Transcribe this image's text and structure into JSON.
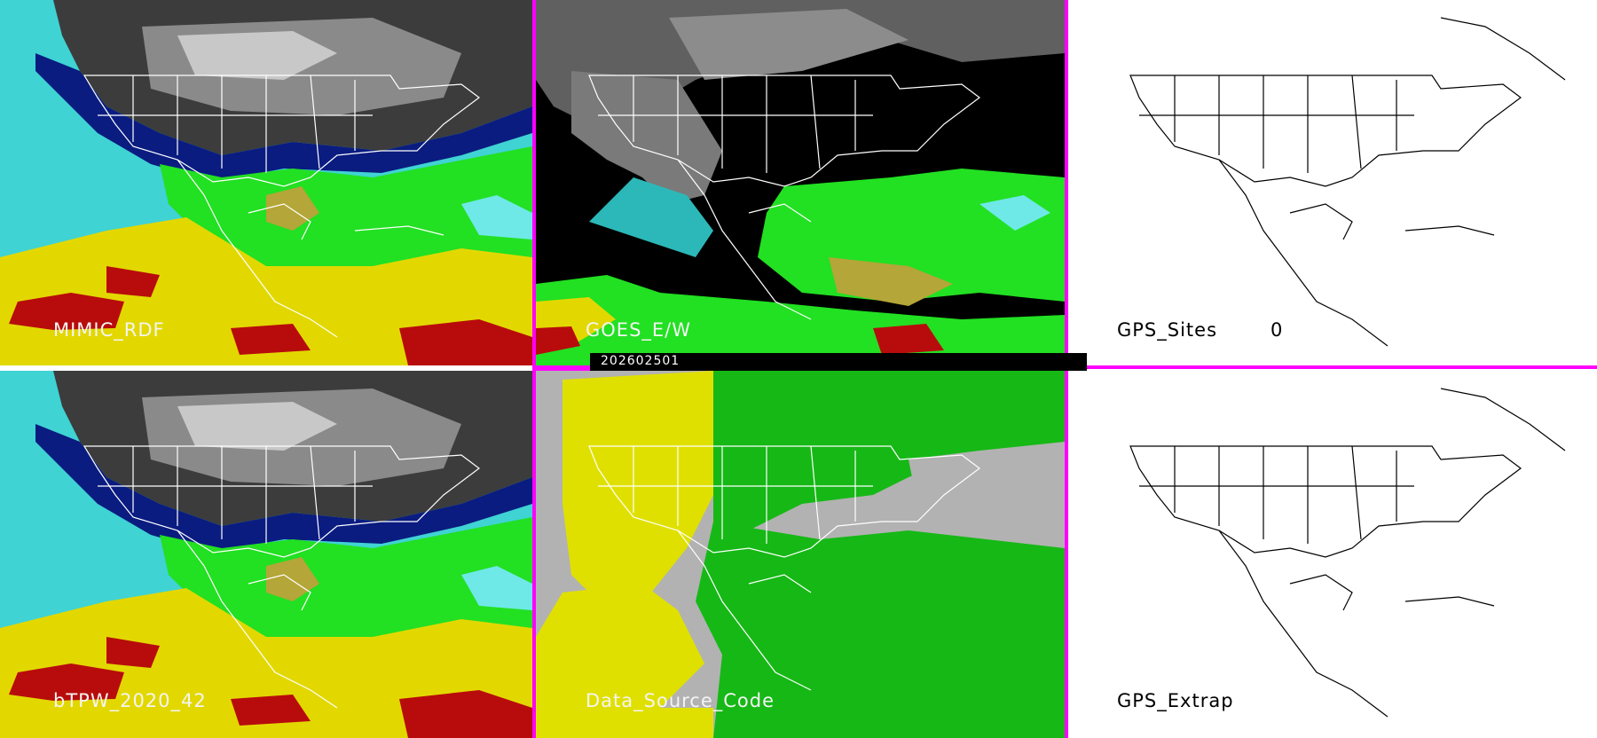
{
  "colors": {
    "divider": "#ff00ff",
    "ocean_cyan": "#3fd3d3",
    "green": "#22e022",
    "yellow": "#e2d800",
    "red": "#b80c0c",
    "gray_dark": "#3a3a3a",
    "gray_light": "#b8b8b8",
    "navy": "#0a1c80",
    "source_yellow": "#e0e000",
    "source_green": "#16b816",
    "source_gray": "#b2b2b2"
  },
  "panels": {
    "mimic": {
      "label": "MIMIC_RDF"
    },
    "goes": {
      "label": "GOES_E/W"
    },
    "gps_sites": {
      "label": "GPS_Sites",
      "count": "0"
    },
    "bltpw": {
      "label": "bTPW_2020_42"
    },
    "source": {
      "label": "Data_Source_Code"
    },
    "gps_extrap": {
      "label": "GPS_Extrap"
    }
  },
  "timestamp": "202602501"
}
